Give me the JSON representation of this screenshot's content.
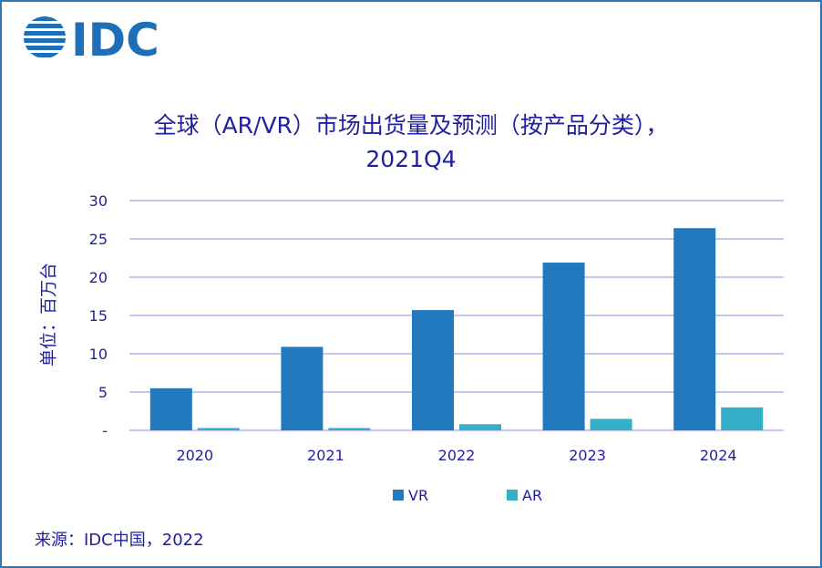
{
  "logo_text": "IDC",
  "source": "来源：IDC中国，2022",
  "colors": {
    "VR": "#2379bd",
    "AR": "#37aec8",
    "grid": "#b4b4f0",
    "text": "#1f1fa0"
  },
  "chart_data": {
    "type": "bar",
    "title_line1": "全球（AR/VR）市场出货量及预测（按产品分类），",
    "title_line2": "2021Q4",
    "ylabel": "单位：百万台",
    "categories": [
      "2020",
      "2021",
      "2022",
      "2023",
      "2024"
    ],
    "series": [
      {
        "name": "VR",
        "values": [
          5.5,
          10.9,
          15.7,
          21.9,
          26.4
        ]
      },
      {
        "name": "AR",
        "values": [
          0.3,
          0.3,
          0.8,
          1.5,
          3.0
        ]
      }
    ],
    "ylim": [
      0,
      30
    ],
    "yticks": [
      0,
      5,
      10,
      15,
      20,
      25,
      30
    ],
    "ytick_labels": [
      "-",
      "5",
      "10",
      "15",
      "20",
      "25",
      "30"
    ],
    "grid": true,
    "legend": "bottom"
  }
}
